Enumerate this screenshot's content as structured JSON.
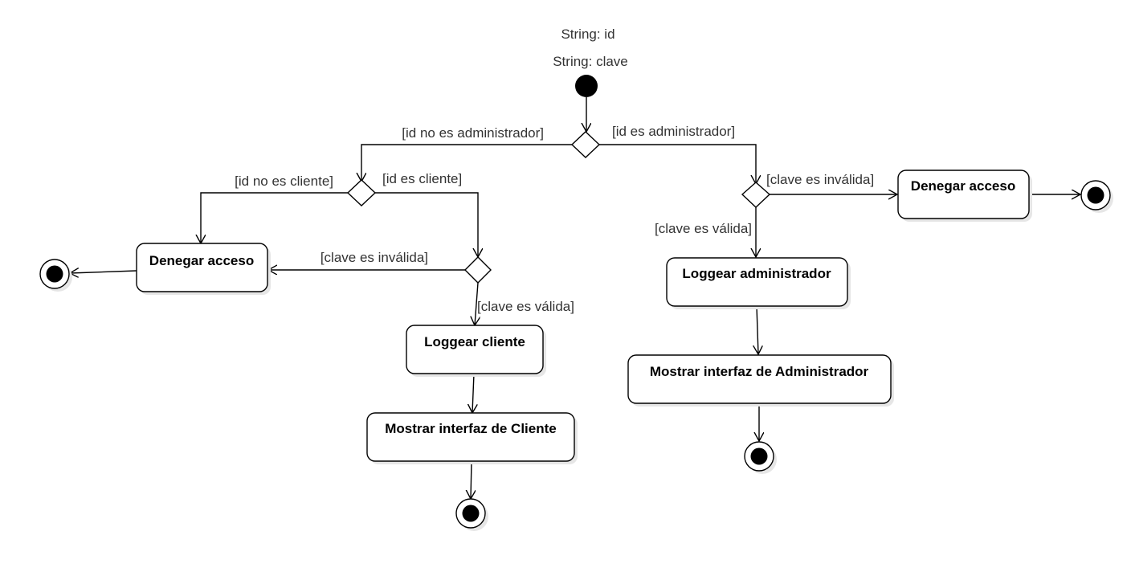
{
  "inputs": {
    "param1": "String: id",
    "param2": "String: clave"
  },
  "guards": {
    "id_not_admin": "[id no es administrador]",
    "id_admin": "[id es administrador]",
    "id_not_client": "[id no es cliente]",
    "id_client": "[id es cliente]",
    "client_key_invalid": "[clave es inválida]",
    "client_key_valid": "[clave es válida]",
    "admin_key_invalid": "[clave es inválida]",
    "admin_key_valid": "[clave es válida]"
  },
  "activities": {
    "deny_client": "Denegar acceso",
    "login_client": "Loggear cliente",
    "show_client": "Mostrar interfaz de Cliente",
    "deny_admin": "Denegar acceso",
    "login_admin": "Loggear administrador",
    "show_admin": "Mostrar interfaz de Administrador"
  }
}
